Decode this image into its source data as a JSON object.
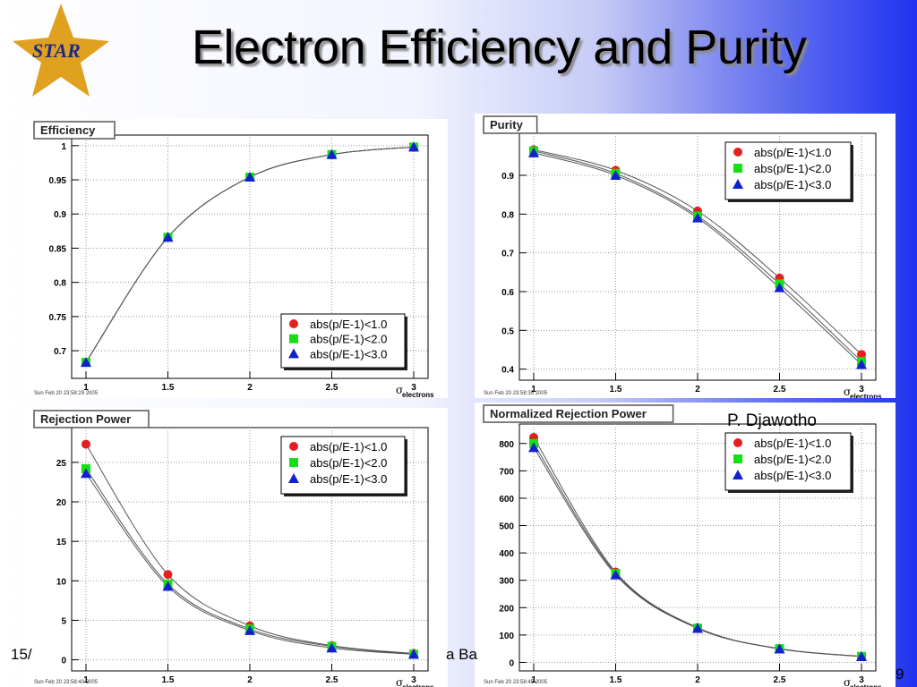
{
  "slide": {
    "title": "Electron Efficiency and Purity",
    "logo_text": "STAR",
    "author": "P. Djawotho",
    "footer_date": "15/",
    "footer_mid": "a Ba",
    "page_number": "9"
  },
  "colors": {
    "series": [
      "#e32020",
      "#15e015",
      "#1020d0"
    ],
    "fit_line": "#555555",
    "logo_star": "#e0a020",
    "logo_text": "#1a2a8a"
  },
  "chart_data": [
    {
      "type": "scatter",
      "title": "Efficiency",
      "timestamp": "Sun Feb 20 23:58:29 2005",
      "xlabel_symbol": "σ",
      "xlabel_sub": "electrons",
      "xlim": [
        1,
        3
      ],
      "ylim": [
        0.67,
        1.005
      ],
      "xticks": [
        1,
        1.5,
        2,
        2.5,
        3
      ],
      "xtick_labels": [
        "1",
        "1.5",
        "2",
        "2.5",
        "3"
      ],
      "yticks": [
        0.7,
        0.75,
        0.8,
        0.85,
        0.9,
        0.95,
        1
      ],
      "ytick_labels": [
        "0.7",
        "0.75",
        "0.8",
        "0.85",
        "0.9",
        "0.95",
        "1"
      ],
      "grid": true,
      "legend_position": "bottom-right",
      "x": [
        1,
        1.5,
        2,
        2.5,
        3
      ],
      "series": [
        {
          "name": "abs(p/E-1)<1.0",
          "marker": "circle",
          "values": [
            0.683,
            0.866,
            0.954,
            0.987,
            0.998
          ]
        },
        {
          "name": "abs(p/E-1)<2.0",
          "marker": "square",
          "values": [
            0.683,
            0.866,
            0.954,
            0.987,
            0.998
          ]
        },
        {
          "name": "abs(p/E-1)<3.0",
          "marker": "triangle",
          "values": [
            0.683,
            0.866,
            0.954,
            0.987,
            0.998
          ]
        }
      ]
    },
    {
      "type": "scatter",
      "title": "Purity",
      "timestamp": "Sun Feb 20 23:58:35 2005",
      "xlabel_symbol": "σ",
      "xlabel_sub": "electrons",
      "xlim": [
        1,
        3
      ],
      "ylim": [
        0.39,
        0.99
      ],
      "xticks": [
        1,
        1.5,
        2,
        2.5,
        3
      ],
      "xtick_labels": [
        "1",
        "1.5",
        "2",
        "2.5",
        "3"
      ],
      "yticks": [
        0.4,
        0.5,
        0.6,
        0.7,
        0.8,
        0.9
      ],
      "ytick_labels": [
        "0.4",
        "0.5",
        "0.6",
        "0.7",
        "0.8",
        "0.9"
      ],
      "grid": true,
      "legend_position": "top-right",
      "x": [
        1,
        1.5,
        2,
        2.5,
        3
      ],
      "series": [
        {
          "name": "abs(p/E-1)<1.0",
          "marker": "circle",
          "values": [
            0.966,
            0.913,
            0.808,
            0.635,
            0.438
          ]
        },
        {
          "name": "abs(p/E-1)<2.0",
          "marker": "square",
          "values": [
            0.963,
            0.905,
            0.795,
            0.62,
            0.42
          ]
        },
        {
          "name": "abs(p/E-1)<3.0",
          "marker": "triangle",
          "values": [
            0.958,
            0.9,
            0.79,
            0.61,
            0.412
          ]
        }
      ]
    },
    {
      "type": "scatter",
      "title": "Rejection Power",
      "timestamp": "Sun Feb 20 23:58:40 2005",
      "xlabel_symbol": "σ",
      "xlabel_sub": "electrons",
      "xlim": [
        1,
        3
      ],
      "ylim": [
        -0.5,
        28.5
      ],
      "xticks": [
        1,
        1.5,
        2,
        2.5,
        3
      ],
      "xtick_labels": [
        "1",
        "1.5",
        "2",
        "2.5",
        "3"
      ],
      "yticks": [
        0,
        5,
        10,
        15,
        20,
        25
      ],
      "ytick_labels": [
        "0",
        "5",
        "10",
        "15",
        "20",
        "25"
      ],
      "grid": true,
      "legend_position": "top-right",
      "x": [
        1,
        1.5,
        2,
        2.5,
        3
      ],
      "series": [
        {
          "name": "abs(p/E-1)<1.0",
          "marker": "circle",
          "values": [
            27.3,
            10.8,
            4.3,
            1.8,
            0.8
          ]
        },
        {
          "name": "abs(p/E-1)<2.0",
          "marker": "square",
          "values": [
            24.2,
            9.6,
            3.9,
            1.7,
            0.7
          ]
        },
        {
          "name": "abs(p/E-1)<3.0",
          "marker": "triangle",
          "values": [
            23.6,
            9.3,
            3.7,
            1.5,
            0.7
          ]
        }
      ]
    },
    {
      "type": "scatter",
      "title": "Normalized Rejection Power",
      "timestamp": "Sun Feb 20 23:58:45 2005",
      "xlabel_symbol": "σ",
      "xlabel_sub": "electrons",
      "xlim": [
        1,
        3
      ],
      "ylim": [
        -5,
        845
      ],
      "xticks": [
        1,
        1.5,
        2,
        2.5,
        3
      ],
      "xtick_labels": [
        "1",
        "1.5",
        "2",
        "2.5",
        "3"
      ],
      "yticks": [
        0,
        100,
        200,
        300,
        400,
        500,
        600,
        700,
        800
      ],
      "ytick_labels": [
        "0",
        "100",
        "200",
        "300",
        "400",
        "500",
        "600",
        "700",
        "800"
      ],
      "grid": true,
      "legend_position": "top-right",
      "x": [
        1,
        1.5,
        2,
        2.5,
        3
      ],
      "series": [
        {
          "name": "abs(p/E-1)<1.0",
          "marker": "circle",
          "values": [
            822,
            330,
            127,
            50,
            22
          ]
        },
        {
          "name": "abs(p/E-1)<2.0",
          "marker": "square",
          "values": [
            800,
            325,
            125,
            50,
            22
          ]
        },
        {
          "name": "abs(p/E-1)<3.0",
          "marker": "triangle",
          "values": [
            785,
            320,
            124,
            49,
            21
          ]
        }
      ]
    }
  ]
}
